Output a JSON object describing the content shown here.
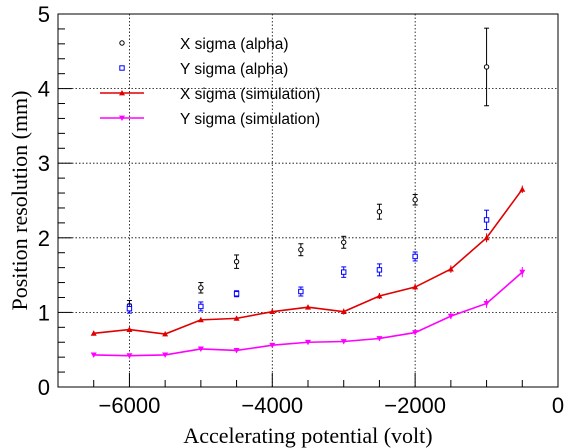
{
  "chart_data": {
    "type": "scatter",
    "title": "",
    "xlabel": "Accelerating potential (volt)",
    "ylabel": "Position resolution (mm)",
    "xlim": [
      -7000,
      0
    ],
    "ylim": [
      0,
      5
    ],
    "x_ticks": [
      -6000,
      -4000,
      -2000,
      0
    ],
    "y_ticks": [
      0,
      1,
      2,
      3,
      4,
      5
    ],
    "grid": true,
    "legend_position": "top-left",
    "series": [
      {
        "name": "X sigma (alpha)",
        "style": "points",
        "marker": "open-circle",
        "color": "#000000",
        "x": [
          -6000,
          -5000,
          -4500,
          -3600,
          -3000,
          -2500,
          -2000,
          -1000
        ],
        "y": [
          1.09,
          1.33,
          1.68,
          1.84,
          1.94,
          2.35,
          2.51,
          4.29
        ],
        "err": [
          0.07,
          0.07,
          0.09,
          0.08,
          0.08,
          0.1,
          0.07,
          0.52
        ]
      },
      {
        "name": "Y sigma (alpha)",
        "style": "points",
        "marker": "open-square",
        "color": "#0000ff",
        "x": [
          -6000,
          -5000,
          -4500,
          -3600,
          -3000,
          -2500,
          -2000,
          -1000
        ],
        "y": [
          1.05,
          1.08,
          1.25,
          1.28,
          1.54,
          1.57,
          1.75,
          2.24
        ],
        "err": [
          0.06,
          0.06,
          0.04,
          0.06,
          0.07,
          0.08,
          0.06,
          0.13
        ]
      },
      {
        "name": "X sigma (simulation)",
        "style": "line",
        "marker": "triangle-up",
        "color": "#e00000",
        "x": [
          -6500,
          -6000,
          -5500,
          -5000,
          -4500,
          -4000,
          -3500,
          -3000,
          -2500,
          -2000,
          -1500,
          -1000,
          -500
        ],
        "y": [
          0.72,
          0.77,
          0.71,
          0.9,
          0.92,
          1.01,
          1.07,
          1.01,
          1.22,
          1.34,
          1.58,
          2.0,
          2.65
        ],
        "err": [
          0.03,
          0.03,
          0.03,
          0.03,
          0.03,
          0.03,
          0.03,
          0.04,
          0.04,
          0.04,
          0.05,
          0.06,
          0.05
        ]
      },
      {
        "name": "Y sigma (simulation)",
        "style": "line",
        "marker": "triangle-down",
        "color": "#ff00ff",
        "x": [
          -6500,
          -6000,
          -5500,
          -5000,
          -4500,
          -4000,
          -3500,
          -3000,
          -2500,
          -2000,
          -1500,
          -1000,
          -500
        ],
        "y": [
          0.43,
          0.42,
          0.43,
          0.51,
          0.49,
          0.56,
          0.6,
          0.61,
          0.65,
          0.73,
          0.95,
          1.12,
          1.54
        ],
        "err": [
          0.02,
          0.02,
          0.02,
          0.02,
          0.02,
          0.02,
          0.02,
          0.02,
          0.02,
          0.03,
          0.04,
          0.06,
          0.07
        ]
      }
    ]
  }
}
